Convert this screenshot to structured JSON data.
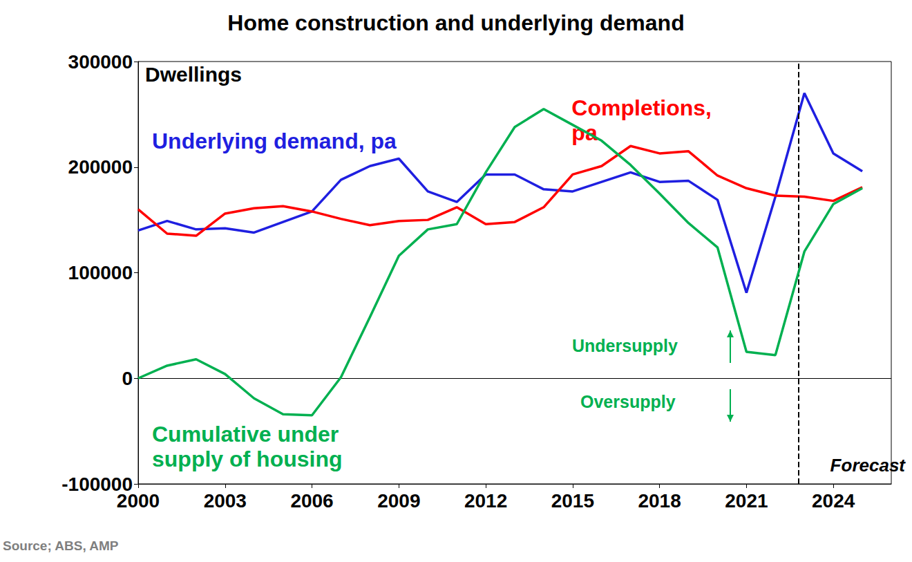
{
  "chart_data": {
    "type": "line",
    "title": "Home construction and underlying demand",
    "y_label": "Dwellings",
    "x": [
      2000,
      2001,
      2002,
      2003,
      2004,
      2005,
      2006,
      2007,
      2008,
      2009,
      2010,
      2011,
      2012,
      2013,
      2014,
      2015,
      2016,
      2017,
      2018,
      2019,
      2020,
      2021,
      2022,
      2023,
      2024,
      2025
    ],
    "series": [
      {
        "name": "Underlying demand, pa",
        "color": "#1f1fe0",
        "values": [
          140000,
          149000,
          141000,
          142000,
          138000,
          148000,
          158000,
          188000,
          201000,
          208000,
          177000,
          167000,
          193000,
          193000,
          179000,
          177000,
          186000,
          195000,
          186000,
          187000,
          169000,
          81000,
          172000,
          270000,
          213000,
          196000
        ]
      },
      {
        "name": "Completions,\npa",
        "color": "#ff0000",
        "values": [
          160000,
          137000,
          135000,
          156000,
          161000,
          163000,
          158000,
          151000,
          145000,
          149000,
          150000,
          162000,
          146000,
          148000,
          162000,
          193000,
          201000,
          220000,
          213000,
          215000,
          192000,
          180000,
          173000,
          172000,
          168000,
          181000
        ]
      },
      {
        "name": "Cumulative under\nsupply of housing",
        "color": "#00b050",
        "values": [
          0,
          12000,
          18000,
          4000,
          -19000,
          -34000,
          -35000,
          1000,
          58000,
          116000,
          141000,
          146000,
          195000,
          238000,
          255000,
          240000,
          225000,
          202000,
          175000,
          147000,
          124000,
          25000,
          22000,
          120000,
          165000,
          180000
        ]
      }
    ],
    "xlim": [
      2000,
      2026
    ],
    "xticks": [
      2000,
      2003,
      2006,
      2009,
      2012,
      2015,
      2018,
      2021,
      2024
    ],
    "ylim": [
      -100000,
      300000
    ],
    "yticks": [
      -100000,
      0,
      100000,
      200000,
      300000
    ],
    "grid": false,
    "annotations": [
      {
        "text": "Undersupply",
        "color": "#00b050",
        "arrow": "up"
      },
      {
        "text": "Oversupply",
        "color": "#00b050",
        "arrow": "down"
      }
    ],
    "forecast": {
      "x": 2022.8,
      "text": "Forecast"
    },
    "source": "Source; ABS, AMP"
  }
}
